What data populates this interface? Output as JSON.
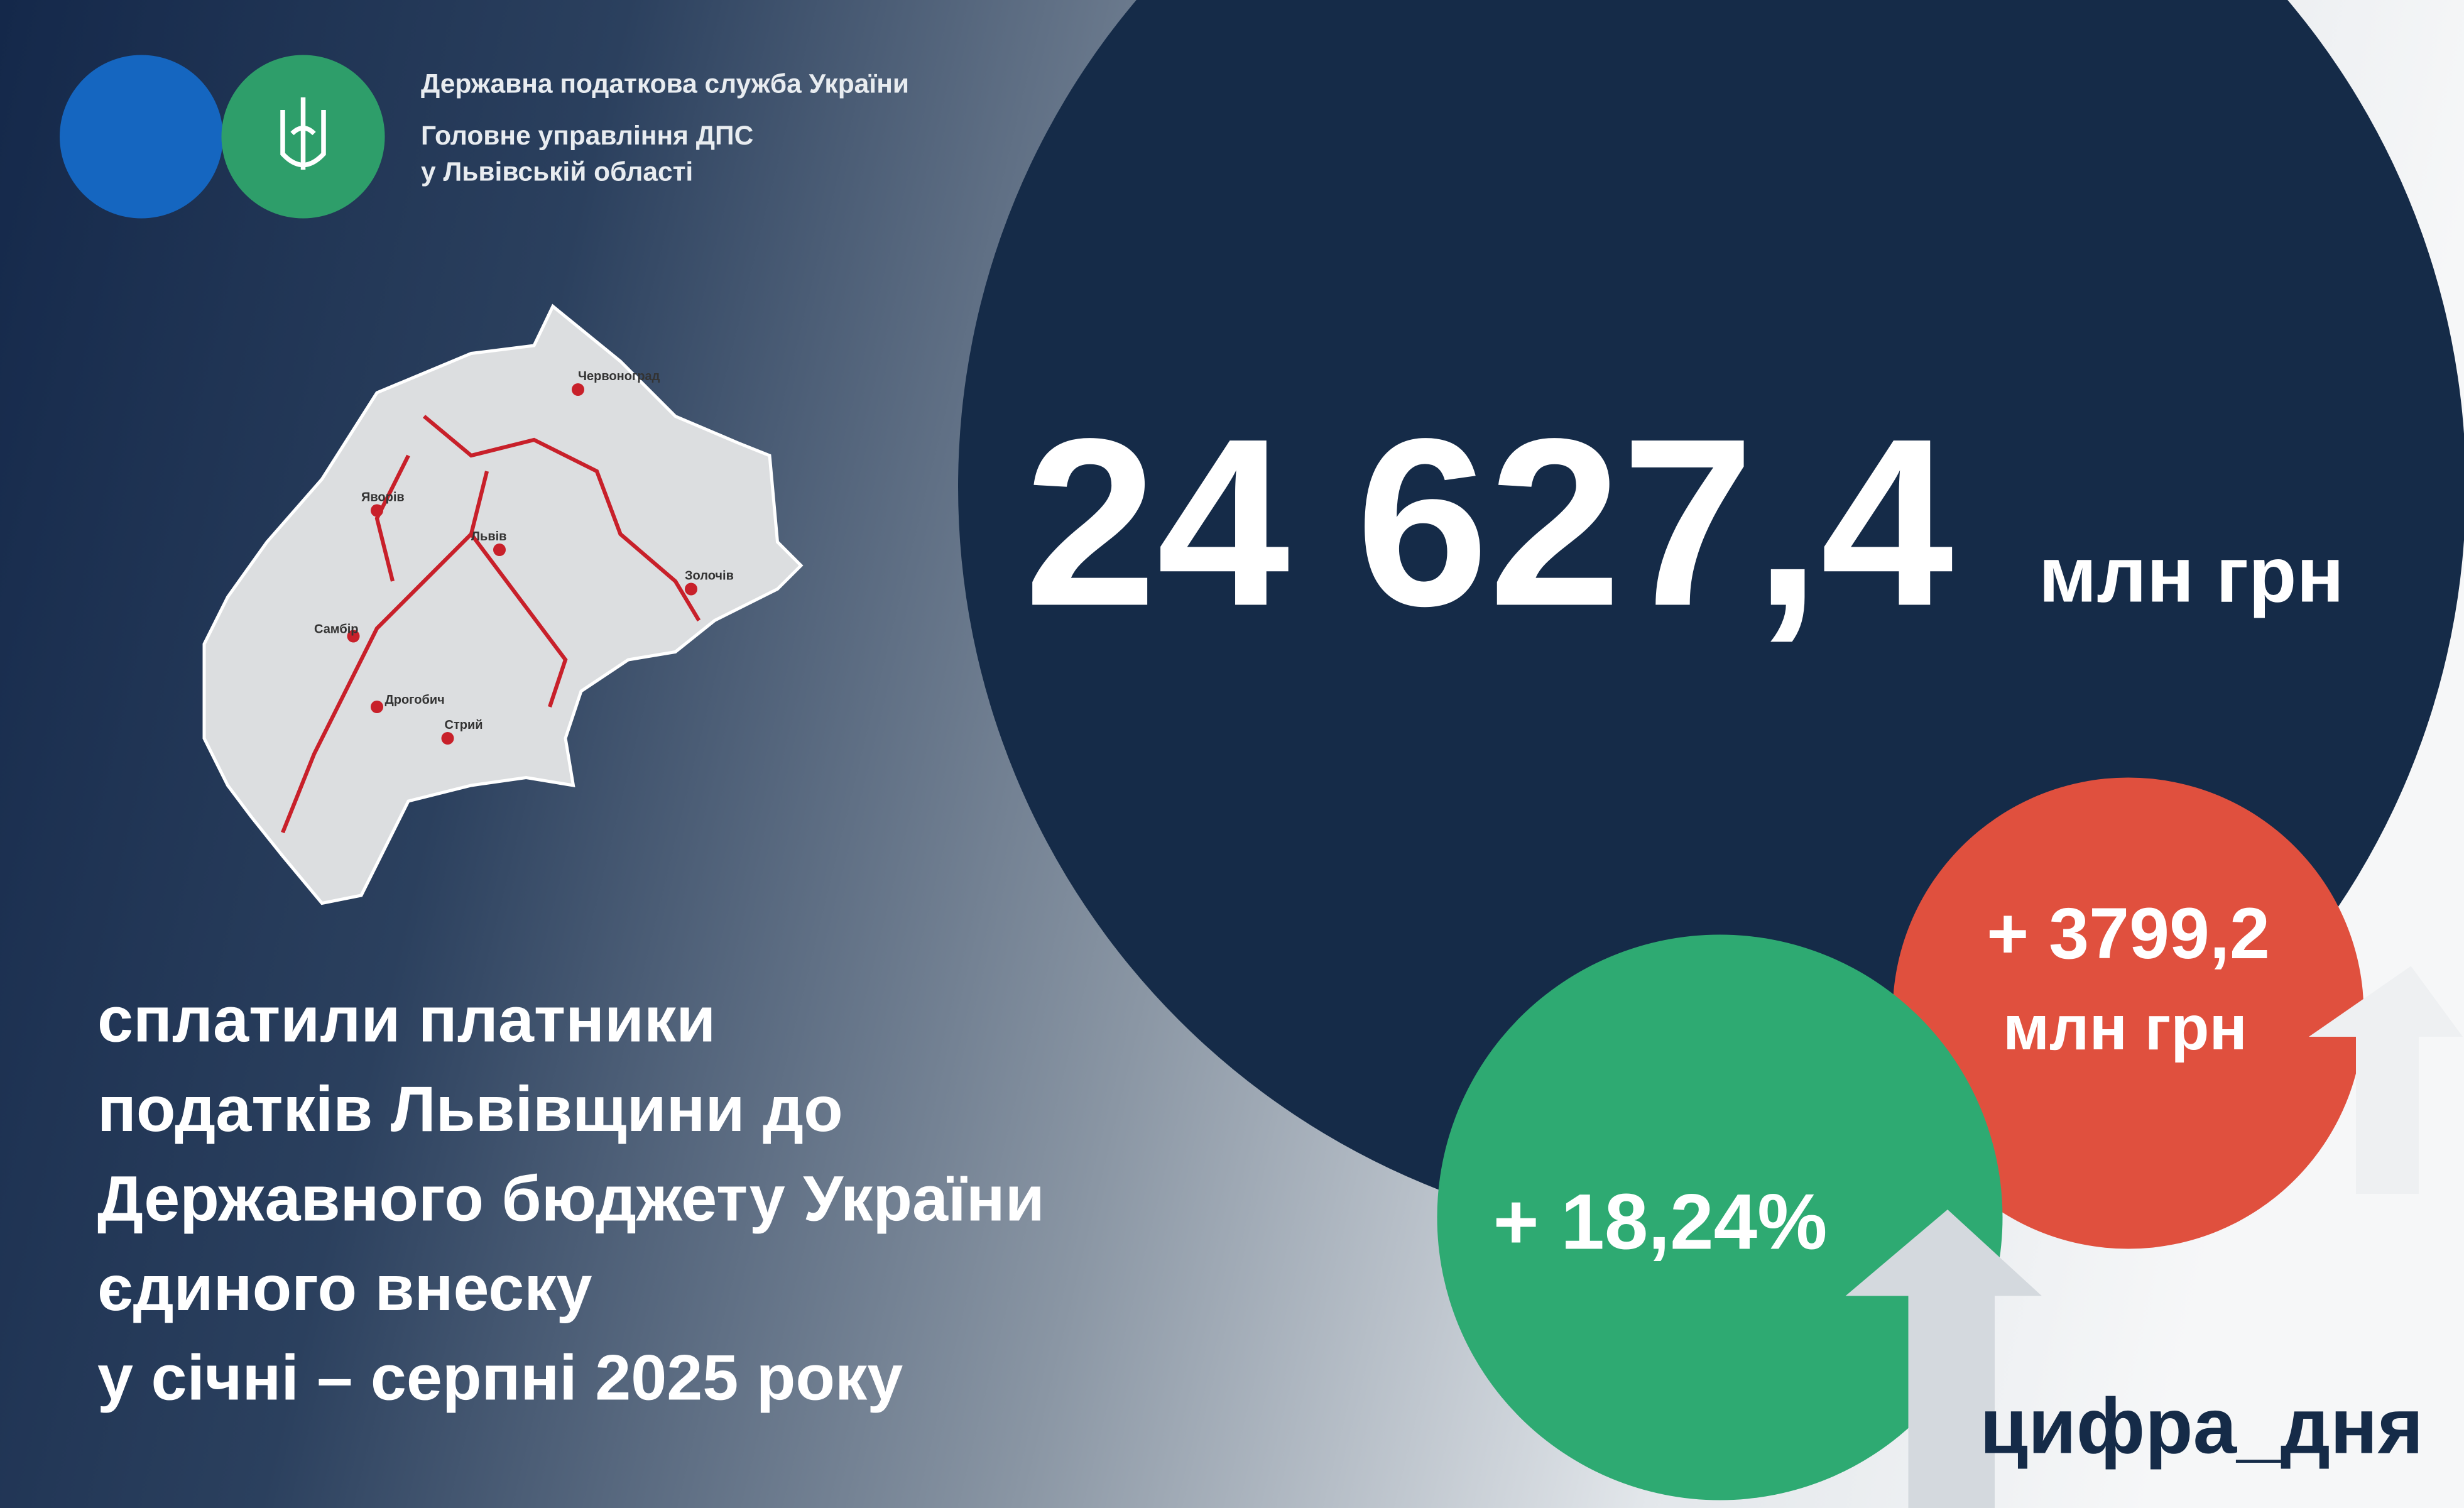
{
  "header": {
    "lines": [
      "Державна податкова служба України",
      "Головне управління ДПС",
      "у Львівській області"
    ]
  },
  "map": {
    "cities": [
      "Червоноград",
      "Яворів",
      "Львів",
      "Золочів",
      "Самбір",
      "Дрогобич",
      "Стрий"
    ]
  },
  "main": {
    "value": "24 627,4",
    "unit": "млн грн"
  },
  "description": {
    "lines": [
      "сплатили платники",
      "податків Львівщини до",
      "Державного бюджету України",
      "єдиного внеску",
      "у січні – серпні 2025 року"
    ]
  },
  "growth": {
    "absolute": {
      "value": "+ 3799,2",
      "unit": "млн грн"
    },
    "percent": "+ 18,24%"
  },
  "hashtag": "цифра_дня"
}
